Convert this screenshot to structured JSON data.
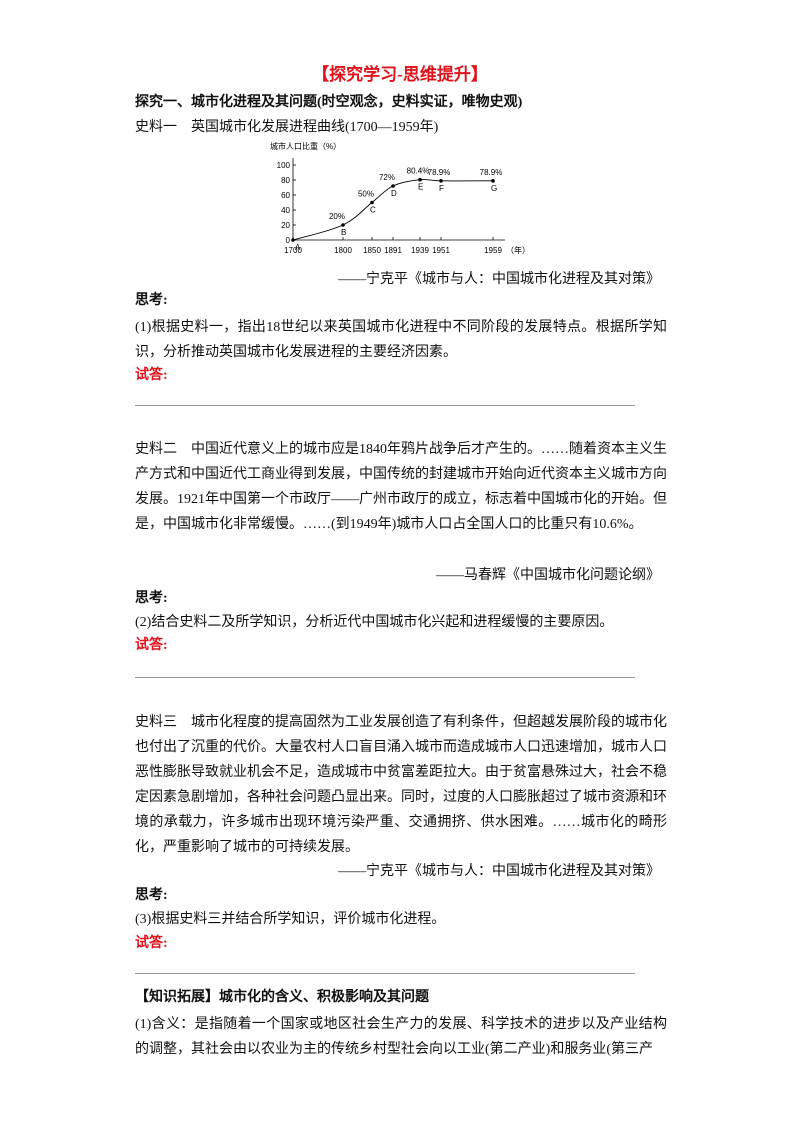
{
  "title": "【探究学习-思维提升】",
  "heading": "探究一、城市化进程及其问题(时空观念，史料实证，唯物史观)",
  "sections": [
    {
      "source_label": "史料一",
      "source_text": "英国城市化发展进程曲线(1700—1959年)",
      "citation": "——宁克平《城市与人：中国城市化进程及其对策》",
      "think_label": "思考:",
      "question": "(1)根据史料一，指出18世纪以来英国城市化进程中不同阶段的发展特点。根据所学知识，分析推动英国城市化发展进程的主要经济因素。",
      "answer_label": "试答:"
    },
    {
      "source_label": "史料二",
      "source_text": "中国近代意义上的城市应是1840年鸦片战争后才产生的。……随着资本主义生产方式和中国近代工商业得到发展，中国传统的封建城市开始向近代资本主义城市方向发展。1921年中国第一个市政厅——广州市政厅的成立，标志着中国城市化的开始。但是，中国城市化非常缓慢。……(到1949年)城市人口占全国人口的比重只有10.6%。",
      "citation": "——马春辉《中国城市化问题论纲》",
      "think_label": "思考:",
      "question": "(2)结合史料二及所学知识，分析近代中国城市化兴起和进程缓慢的主要原因。",
      "answer_label": "试答:"
    },
    {
      "source_label": "史料三",
      "source_text": "城市化程度的提高固然为工业发展创造了有利条件，但超越发展阶段的城市化也付出了沉重的代价。大量农村人口盲目涌入城市而造成城市人口迅速增加，城市人口恶性膨胀导致就业机会不足，造成城市中贫富差距拉大。由于贫富悬殊过大，社会不稳定因素急剧增加，各种社会问题凸显出来。同时，过度的人口膨胀超过了城市资源和环境的承载力，许多城市出现环境污染严重、交通拥挤、供水困难。……城市化的畸形化，严重影响了城市的可持续发展。",
      "citation": "——宁克平《城市与人：中国城市化进程及其对策》",
      "think_label": "思考:",
      "question": "(3)根据史料三并结合所学知识，评价城市化进程。",
      "answer_label": "试答:"
    }
  ],
  "extension": {
    "label": "【知识拓展】城市化的含义、积极影响及其问题",
    "text": "(1)含义：是指随着一个国家或地区社会生产力的发展、科学技术的进步以及产业结构的调整，其社会由以农业为主的传统乡村型社会向以工业(第二产业)和服务业(第三产"
  },
  "chart_data": {
    "type": "line",
    "y_label": "城市人口比重（%）",
    "x_unit": "（年）",
    "categories": [
      "1700",
      "1800",
      "1850",
      "1891",
      "1939",
      "1951",
      "1959"
    ],
    "point_labels": [
      "A",
      "B",
      "C",
      "D",
      "E",
      "F",
      "G"
    ],
    "values": [
      0,
      20,
      50,
      72,
      80.4,
      78.9,
      78.9
    ],
    "value_labels": [
      null,
      "20%",
      "50%",
      "72%",
      "80.4%",
      "78.9%",
      "78.9%"
    ],
    "color": "#000000",
    "ylim": [
      0,
      100
    ],
    "yticks": [
      0,
      20,
      40,
      60,
      80,
      100
    ]
  }
}
